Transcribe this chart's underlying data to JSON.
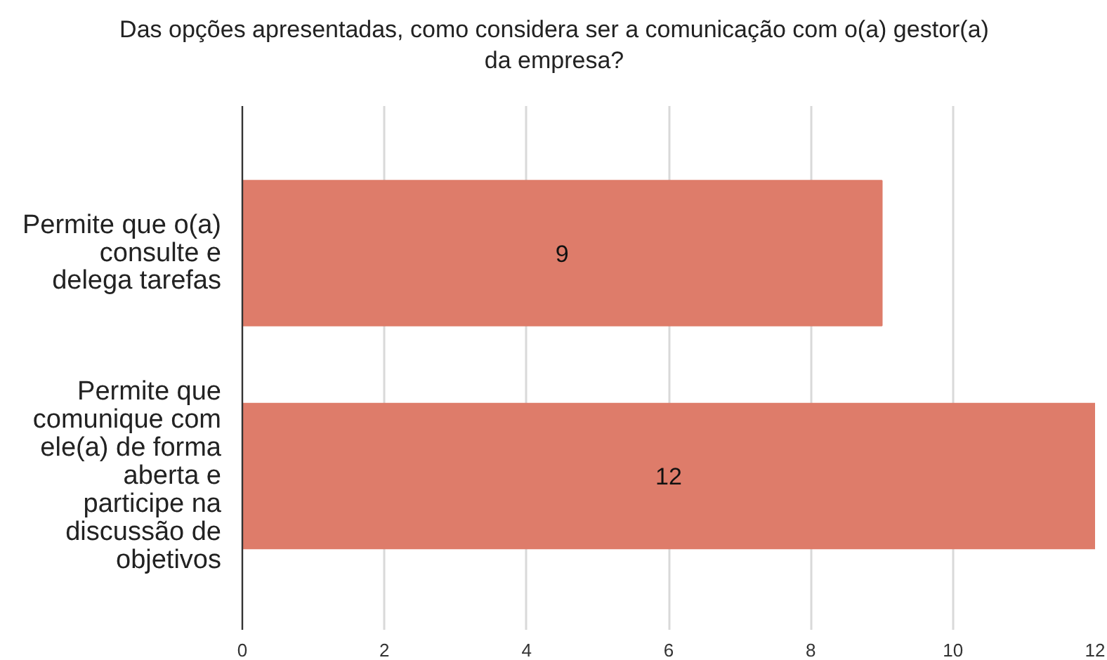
{
  "chart_data": {
    "type": "bar",
    "orientation": "horizontal",
    "title": "Das opções apresentadas, como considera ser a comunicação com o(a) gestor(a) da empresa?",
    "categories": [
      "Permite que o(a) consulte e delega tarefas",
      "Permite que comunique com ele(a) de forma aberta e participe na discussão de objetivos"
    ],
    "values": [
      9,
      12
    ],
    "color": "#de7c6a",
    "xlim": [
      0,
      12
    ],
    "xticks": [
      0,
      2,
      4,
      6,
      8,
      10,
      12
    ],
    "grid": "x",
    "data_labels": true
  }
}
